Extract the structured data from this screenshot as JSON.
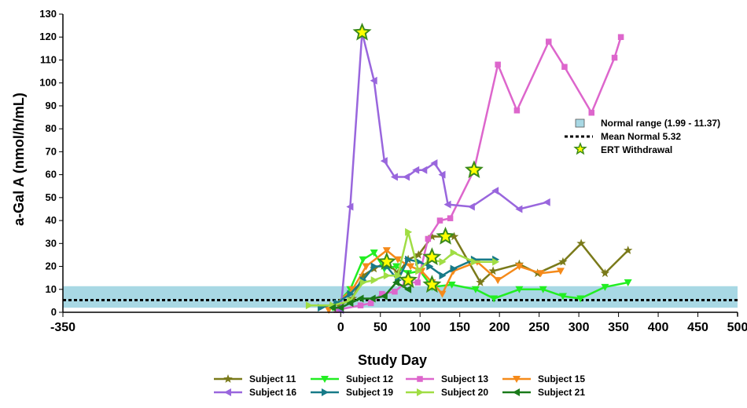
{
  "chart_data": {
    "type": "line",
    "xlabel": "Study Day",
    "ylabel": "a-Gal A (nmol/h/mL)",
    "xlim": [
      -350,
      500
    ],
    "ylim": [
      0,
      130
    ],
    "x_ticks": [
      -350,
      0,
      50,
      100,
      150,
      200,
      250,
      300,
      350,
      400,
      450,
      500
    ],
    "x_tick_labels": [
      "-350",
      "0",
      "50",
      "100",
      "150",
      "200",
      "250",
      "300",
      "350",
      "400",
      "450",
      "500"
    ],
    "y_ticks": [
      0,
      10,
      20,
      30,
      40,
      50,
      60,
      70,
      80,
      90,
      100,
      110,
      120,
      130
    ],
    "y_tick_labels": [
      "0",
      "10",
      "20",
      "30",
      "40",
      "50",
      "60",
      "70",
      "80",
      "90",
      "100",
      "110",
      "120",
      "130"
    ],
    "grid": false,
    "normal_range": {
      "label": "Normal range (1.99 - 11.37)",
      "low": 1.99,
      "high": 11.37,
      "color": "#a8d8e4"
    },
    "mean_normal": {
      "label": "Mean Normal 5.32",
      "value": 5.32
    },
    "withdrawal_label": "ERT Withdrawal",
    "withdrawal_colors": {
      "fill": "#ffff00",
      "stroke": "#3a8a1a"
    },
    "series": [
      {
        "name": "Subject 11",
        "color": "#7a7a1a",
        "marker": "star",
        "x": [
          -2,
          15,
          28,
          42,
          58,
          72,
          85,
          98,
          115,
          130,
          143,
          176,
          192,
          225,
          248,
          280,
          303,
          333,
          362
        ],
        "y": [
          3,
          6,
          16,
          19,
          22,
          17,
          23,
          25,
          33,
          33,
          33,
          13,
          18,
          21,
          17,
          22,
          30,
          17,
          27
        ]
      },
      {
        "name": "Subject 12",
        "color": "#22ee22",
        "marker": "triangle-down",
        "x": [
          -10,
          12,
          28,
          42,
          55,
          70,
          85,
          100,
          115,
          140,
          170,
          193,
          225,
          255,
          280,
          302,
          333,
          362
        ],
        "y": [
          2,
          10,
          23,
          26,
          19,
          20,
          17,
          18,
          11,
          12,
          10,
          6,
          10,
          10,
          7,
          6,
          11,
          13
        ]
      },
      {
        "name": "Subject 13",
        "color": "#dd66cc",
        "marker": "square",
        "x": [
          -5,
          25,
          38,
          52,
          68,
          82,
          97,
          110,
          125,
          138,
          168,
          198,
          222,
          262,
          282,
          316,
          345,
          353
        ],
        "y": [
          1,
          3,
          4,
          8,
          9,
          13,
          13,
          32,
          40,
          41,
          62,
          108,
          88,
          118,
          107,
          87,
          111,
          120
        ]
      },
      {
        "name": "Subject 15",
        "color": "#f58a1a",
        "marker": "triangle-down",
        "x": [
          -15,
          15,
          32,
          58,
          72,
          88,
          102,
          115,
          128,
          142,
          172,
          198,
          225,
          252,
          277
        ],
        "y": [
          1,
          10,
          20,
          27,
          23,
          20,
          18,
          13,
          8,
          18,
          22,
          14,
          20,
          17,
          18
        ]
      },
      {
        "name": "Subject 16",
        "color": "#9966dd",
        "marker": "triangle-left",
        "x": [
          0,
          12,
          27,
          42,
          55,
          68,
          83,
          95,
          105,
          118,
          128,
          135,
          165,
          195,
          225,
          260
        ],
        "y": [
          1,
          46,
          122,
          101,
          66,
          59,
          59,
          62,
          62,
          65,
          60,
          47,
          46,
          53,
          45,
          48
        ]
      },
      {
        "name": "Subject 19",
        "color": "#177a88",
        "marker": "triangle-right",
        "x": [
          -25,
          -5,
          12,
          28,
          42,
          58,
          72,
          85,
          98,
          112,
          128,
          142,
          168,
          195
        ],
        "y": [
          2,
          4,
          8,
          14,
          20,
          20,
          14,
          23,
          22,
          20,
          16,
          19,
          23,
          23
        ]
      },
      {
        "name": "Subject 20",
        "color": "#a0dd44",
        "marker": "triangle-right",
        "x": [
          -40,
          -10,
          12,
          28,
          42,
          58,
          72,
          85,
          98,
          112,
          128,
          142,
          168,
          195
        ],
        "y": [
          3,
          3,
          5,
          13,
          14,
          16,
          16,
          35,
          18,
          23,
          22,
          26,
          22,
          22
        ]
      },
      {
        "name": "Subject 21",
        "color": "#1a7a1a",
        "marker": "triangle-left",
        "x": [
          -10,
          0,
          12,
          25,
          40,
          55,
          70,
          85
        ],
        "y": [
          2,
          2,
          4,
          6,
          6,
          7,
          13,
          10
        ]
      }
    ],
    "withdrawal_points": [
      {
        "x": 27,
        "y": 122
      },
      {
        "x": 58,
        "y": 22
      },
      {
        "x": 85,
        "y": 14
      },
      {
        "x": 115,
        "y": 24
      },
      {
        "x": 115,
        "y": 12
      },
      {
        "x": 132,
        "y": 33
      },
      {
        "x": 168,
        "y": 62
      }
    ]
  }
}
